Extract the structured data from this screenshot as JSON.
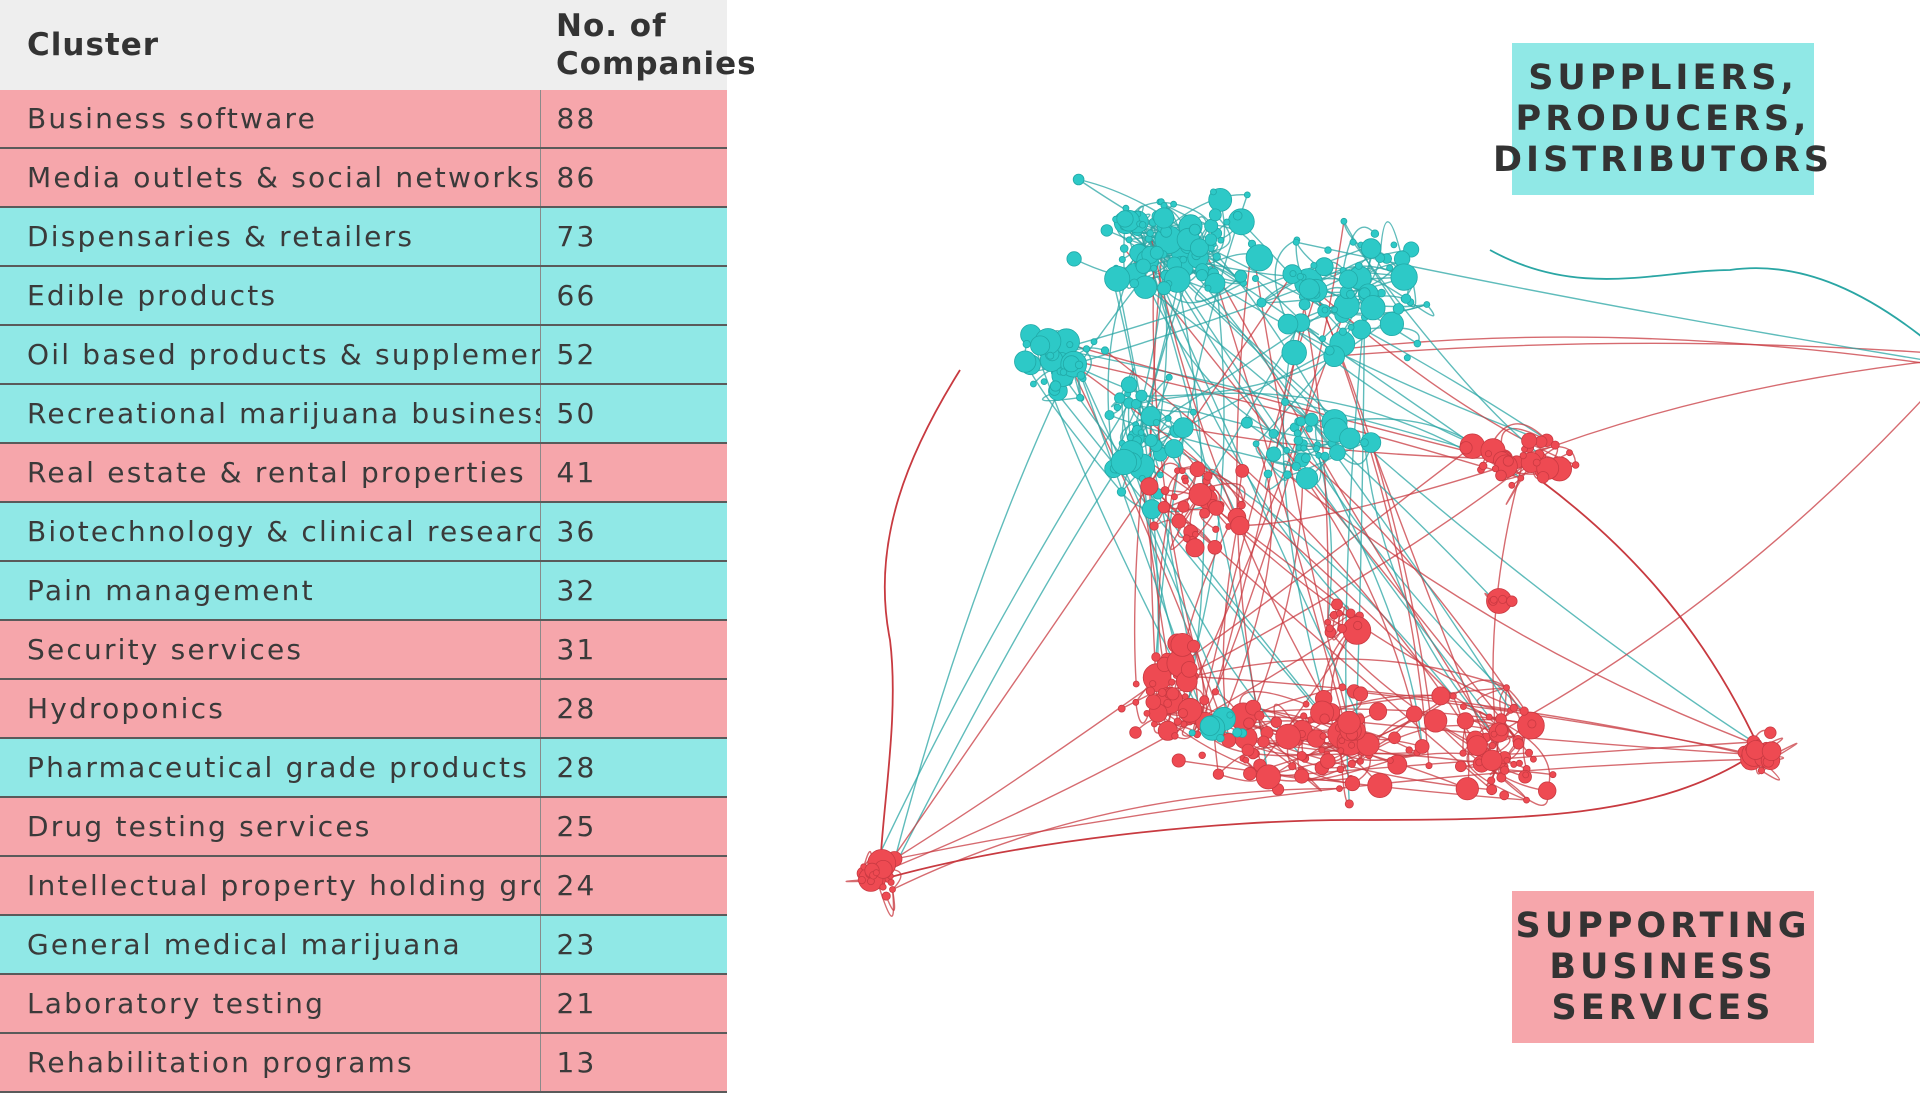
{
  "table": {
    "header_cluster": "Cluster",
    "header_count_line1": "No. of",
    "header_count_line2": "Companies",
    "rows": [
      {
        "name": "Business software",
        "count": "88",
        "group": "red"
      },
      {
        "name": "Media outlets & social networks",
        "count": "86",
        "group": "red"
      },
      {
        "name": "Dispensaries & retailers",
        "count": "73",
        "group": "cyan"
      },
      {
        "name": "Edible products",
        "count": "66",
        "group": "cyan"
      },
      {
        "name": "Oil based products & supplements",
        "count": "52",
        "group": "cyan"
      },
      {
        "name": "Recreational marijuana businesses",
        "count": "50",
        "group": "cyan"
      },
      {
        "name": "Real estate & rental properties",
        "count": "41",
        "group": "red"
      },
      {
        "name": "Biotechnology & clinical research",
        "count": "36",
        "group": "cyan"
      },
      {
        "name": "Pain management",
        "count": "32",
        "group": "cyan"
      },
      {
        "name": "Security services",
        "count": "31",
        "group": "red"
      },
      {
        "name": "Hydroponics",
        "count": "28",
        "group": "red"
      },
      {
        "name": "Pharmaceutical grade products",
        "count": "28",
        "group": "cyan"
      },
      {
        "name": "Drug testing services",
        "count": "25",
        "group": "red"
      },
      {
        "name": "Intellectual property holding groups",
        "count": "24",
        "group": "red"
      },
      {
        "name": "General medical marijuana",
        "count": "23",
        "group": "cyan"
      },
      {
        "name": "Laboratory testing",
        "count": "21",
        "group": "red"
      },
      {
        "name": "Rehabilitation programs",
        "count": "13",
        "group": "red"
      }
    ]
  },
  "labels": {
    "top": [
      "SUPPLIERS,",
      "PRODUCERS,",
      "DISTRIBUTORS"
    ],
    "bottom": [
      "SUPPORTING",
      "BUSINESS",
      "SERVICES"
    ]
  },
  "colors": {
    "red_node": "#ee4a52",
    "cyan_node": "#2dc9c7",
    "red_edge": "#c83a40",
    "cyan_edge": "#2aa6a4",
    "red_bg": "#f6a6ab",
    "cyan_bg": "#90e8e6"
  }
}
